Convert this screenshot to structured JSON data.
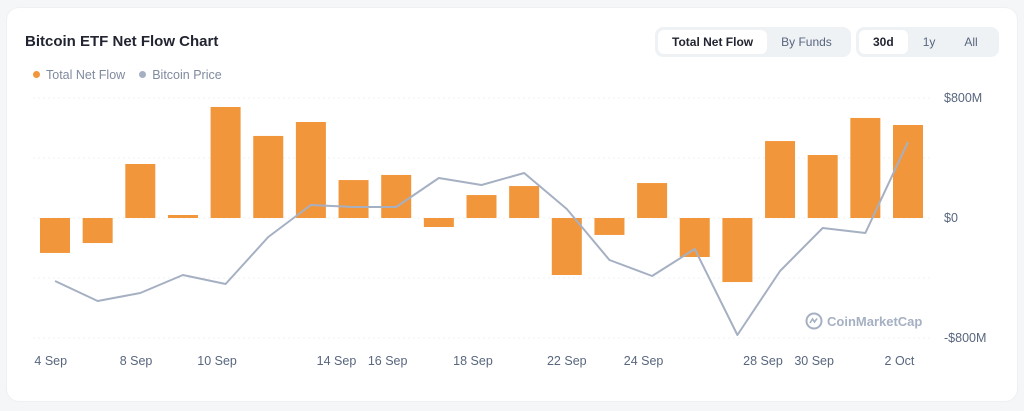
{
  "title": "Bitcoin ETF Net Flow Chart",
  "view_toggle": [
    "Total Net Flow",
    "By Funds"
  ],
  "view_selected": "Total Net Flow",
  "range_toggle": [
    "30d",
    "1y",
    "All"
  ],
  "range_selected": "30d",
  "watermark": "CoinMarketCap",
  "colors": {
    "net_flow": "#f2963b",
    "price": "#a6b0c3"
  },
  "chart_data": {
    "type": "bar",
    "title": "Bitcoin ETF Net Flow Chart",
    "legend_position": "top-left",
    "grid": true,
    "y_ticks": [
      "$800M",
      "$0",
      "-$800M"
    ],
    "ylim": [
      -800,
      800
    ],
    "y_unit": "USD millions",
    "x_ticks": [
      {
        "label": "4 Sep",
        "at": -0.1
      },
      {
        "label": "8 Sep",
        "at": 1.9
      },
      {
        "label": "10 Sep",
        "at": 3.8
      },
      {
        "label": "14 Sep",
        "at": 6.6
      },
      {
        "label": "16 Sep",
        "at": 7.8
      },
      {
        "label": "18 Sep",
        "at": 9.8
      },
      {
        "label": "22 Sep",
        "at": 12.0
      },
      {
        "label": "24 Sep",
        "at": 13.8
      },
      {
        "label": "28 Sep",
        "at": 16.6
      },
      {
        "label": "30 Sep",
        "at": 17.8
      },
      {
        "label": "2 Oct",
        "at": 19.8
      }
    ],
    "series": [
      {
        "name": "Total Net Flow",
        "type": "bar",
        "values": [
          -233,
          -167,
          360,
          20,
          740,
          547,
          640,
          253,
          287,
          -60,
          153,
          213,
          -380,
          -113,
          233,
          -260,
          -427,
          513,
          420,
          667,
          620
        ]
      },
      {
        "name": "Bitcoin Price",
        "type": "line",
        "values": [
          57140,
          55940,
          56420,
          57500,
          56960,
          59780,
          61700,
          61580,
          61580,
          63320,
          62900,
          63620,
          61460,
          58400,
          57440,
          59060,
          53900,
          57740,
          60320,
          60020,
          65480
        ]
      }
    ]
  }
}
